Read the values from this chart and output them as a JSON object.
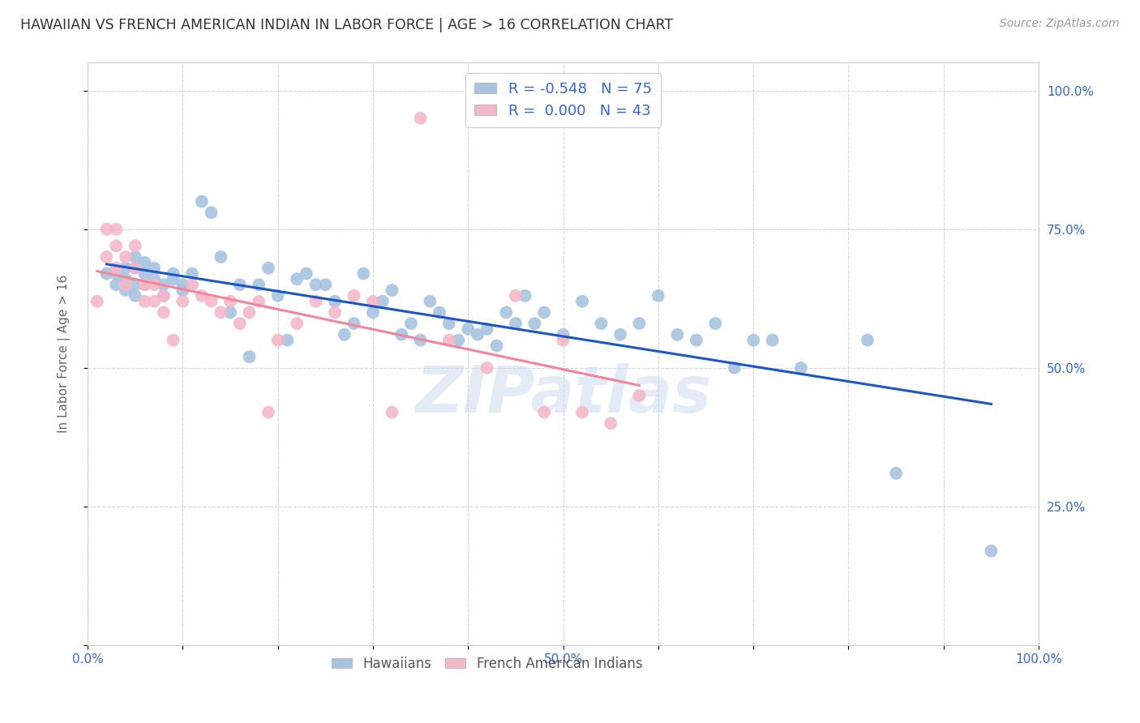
{
  "title": "HAWAIIAN VS FRENCH AMERICAN INDIAN IN LABOR FORCE | AGE > 16 CORRELATION CHART",
  "source": "Source: ZipAtlas.com",
  "ylabel": "In Labor Force | Age > 16",
  "xlim": [
    0.0,
    1.0
  ],
  "ylim": [
    0.0,
    1.05
  ],
  "yticks": [
    0.0,
    0.25,
    0.5,
    0.75,
    1.0
  ],
  "ytick_labels": [
    "",
    "25.0%",
    "50.0%",
    "75.0%",
    "100.0%"
  ],
  "xticks": [
    0.0,
    0.1,
    0.2,
    0.3,
    0.4,
    0.5,
    0.6,
    0.7,
    0.8,
    0.9,
    1.0
  ],
  "xtick_labels": [
    "0.0%",
    "",
    "",
    "",
    "",
    "50.0%",
    "",
    "",
    "",
    "",
    "100.0%"
  ],
  "hawaiian_color": "#a8c4e0",
  "french_color": "#f4b8c8",
  "trend_hawaiian_color": "#1a56c4",
  "trend_french_color": "#f48498",
  "background_color": "#ffffff",
  "grid_color": "#d0d0d0",
  "watermark": "ZIPatlas",
  "R_hawaiian": -0.548,
  "N_hawaiian": 75,
  "R_french": 0.0,
  "N_french": 43,
  "hawaiian_x": [
    0.02,
    0.03,
    0.03,
    0.04,
    0.04,
    0.04,
    0.05,
    0.05,
    0.05,
    0.05,
    0.06,
    0.06,
    0.06,
    0.07,
    0.07,
    0.08,
    0.08,
    0.09,
    0.09,
    0.1,
    0.1,
    0.11,
    0.12,
    0.13,
    0.14,
    0.15,
    0.16,
    0.17,
    0.18,
    0.19,
    0.2,
    0.21,
    0.22,
    0.23,
    0.24,
    0.25,
    0.26,
    0.27,
    0.28,
    0.29,
    0.3,
    0.31,
    0.32,
    0.33,
    0.34,
    0.35,
    0.36,
    0.37,
    0.38,
    0.39,
    0.4,
    0.41,
    0.42,
    0.43,
    0.44,
    0.45,
    0.46,
    0.47,
    0.48,
    0.5,
    0.52,
    0.54,
    0.56,
    0.58,
    0.6,
    0.62,
    0.64,
    0.66,
    0.68,
    0.7,
    0.72,
    0.75,
    0.82,
    0.85,
    0.95
  ],
  "hawaiian_y": [
    0.67,
    0.67,
    0.65,
    0.64,
    0.68,
    0.66,
    0.65,
    0.68,
    0.7,
    0.63,
    0.69,
    0.67,
    0.65,
    0.66,
    0.68,
    0.63,
    0.65,
    0.67,
    0.66,
    0.65,
    0.64,
    0.67,
    0.8,
    0.78,
    0.7,
    0.6,
    0.65,
    0.52,
    0.65,
    0.68,
    0.63,
    0.55,
    0.66,
    0.67,
    0.65,
    0.65,
    0.62,
    0.56,
    0.58,
    0.67,
    0.6,
    0.62,
    0.64,
    0.56,
    0.58,
    0.55,
    0.62,
    0.6,
    0.58,
    0.55,
    0.57,
    0.56,
    0.57,
    0.54,
    0.6,
    0.58,
    0.63,
    0.58,
    0.6,
    0.56,
    0.62,
    0.58,
    0.56,
    0.58,
    0.63,
    0.56,
    0.55,
    0.58,
    0.5,
    0.55,
    0.55,
    0.5,
    0.55,
    0.31,
    0.17
  ],
  "french_x": [
    0.01,
    0.02,
    0.02,
    0.03,
    0.03,
    0.03,
    0.04,
    0.04,
    0.05,
    0.05,
    0.06,
    0.06,
    0.07,
    0.07,
    0.08,
    0.08,
    0.09,
    0.1,
    0.11,
    0.12,
    0.13,
    0.14,
    0.15,
    0.16,
    0.17,
    0.18,
    0.19,
    0.2,
    0.22,
    0.24,
    0.26,
    0.28,
    0.3,
    0.32,
    0.35,
    0.38,
    0.42,
    0.45,
    0.48,
    0.5,
    0.52,
    0.55,
    0.58
  ],
  "french_y": [
    0.62,
    0.75,
    0.7,
    0.75,
    0.72,
    0.68,
    0.7,
    0.65,
    0.72,
    0.68,
    0.62,
    0.65,
    0.62,
    0.65,
    0.63,
    0.6,
    0.55,
    0.62,
    0.65,
    0.63,
    0.62,
    0.6,
    0.62,
    0.58,
    0.6,
    0.62,
    0.42,
    0.55,
    0.58,
    0.62,
    0.6,
    0.63,
    0.62,
    0.42,
    0.95,
    0.55,
    0.5,
    0.63,
    0.42,
    0.55,
    0.42,
    0.4,
    0.45
  ]
}
